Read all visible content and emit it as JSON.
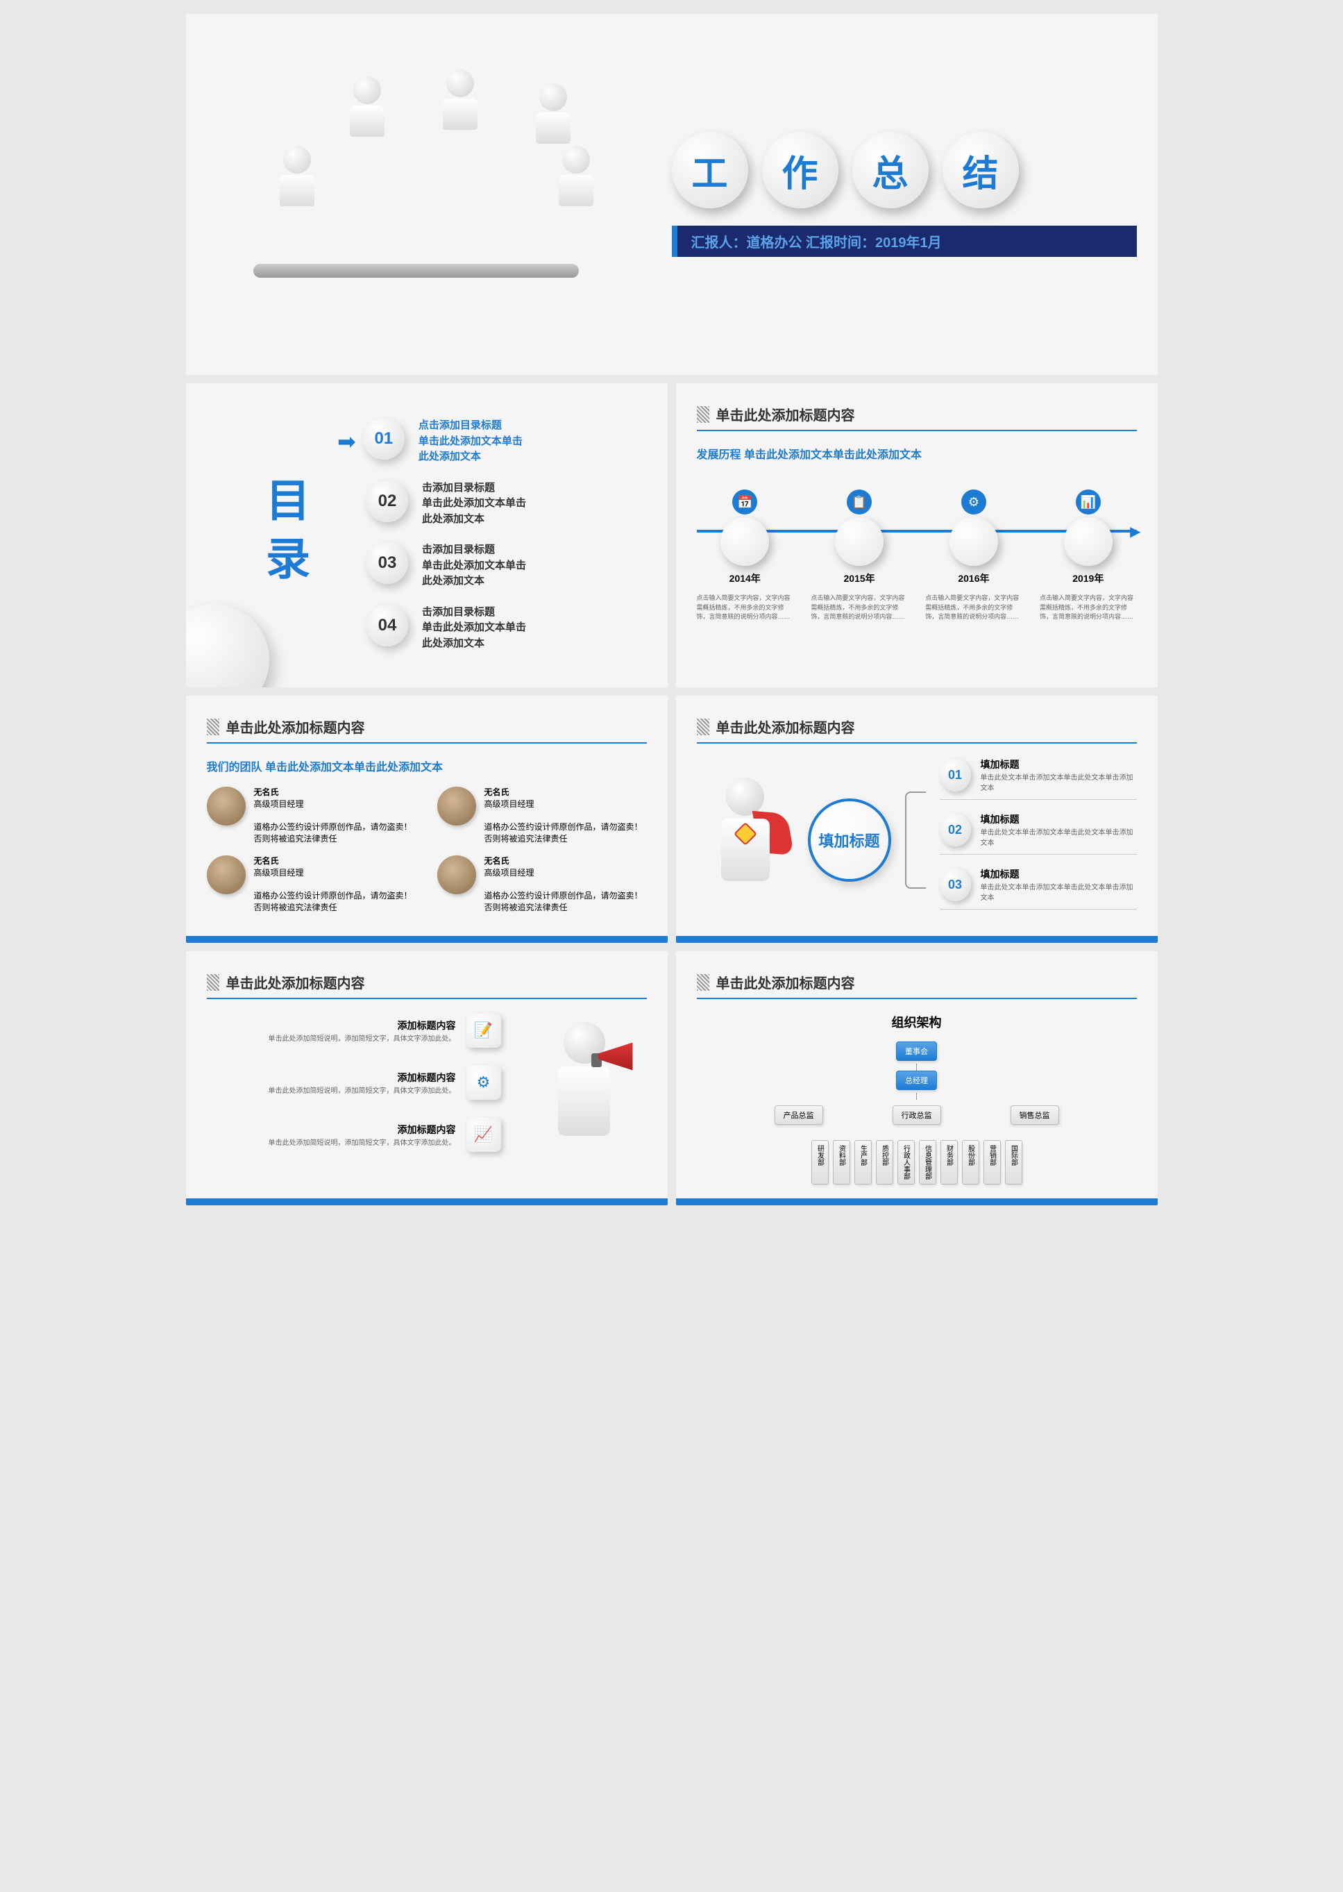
{
  "colors": {
    "primary": "#1e7bd4",
    "dark_bar": "#1a2a6c",
    "accent_red": "#d33"
  },
  "slide1": {
    "title_chars": [
      "工",
      "作",
      "总",
      "结"
    ],
    "subtitle": "汇报人：道格办公 汇报时间：2019年1月"
  },
  "slide2": {
    "heading": "目录",
    "items": [
      {
        "num": "01",
        "text": "点击添加目录标题\n单击此处添加文本单击\n此处添加文本",
        "active": true
      },
      {
        "num": "02",
        "text": "击添加目录标题\n单击此处添加文本单击\n此处添加文本",
        "active": false
      },
      {
        "num": "03",
        "text": "击添加目录标题\n单击此处添加文本单击\n此处添加文本",
        "active": false
      },
      {
        "num": "04",
        "text": "击添加目录标题\n单击此处添加文本单击\n此处添加文本",
        "active": false
      }
    ]
  },
  "slide3": {
    "header": "单击此处添加标题内容",
    "subtitle": "发展历程 单击此处添加文本单击此处添加文本",
    "timeline": [
      {
        "year": "2014年",
        "icon": "📅",
        "desc": "点击输入简要文字内容，文字内容需概括精炼，不用多余的文字修饰，言简意赅的说明分项内容……"
      },
      {
        "year": "2015年",
        "icon": "📋",
        "desc": "点击输入简要文字内容，文字内容需概括精炼，不用多余的文字修饰，言简意赅的说明分项内容……"
      },
      {
        "year": "2016年",
        "icon": "⚙",
        "desc": "点击输入简要文字内容，文字内容需概括精炼，不用多余的文字修饰，言简意赅的说明分项内容……"
      },
      {
        "year": "2019年",
        "icon": "📊",
        "desc": "点击输入简要文字内容，文字内容需概括精炼，不用多余的文字修饰，言简意赅的说明分项内容……"
      }
    ]
  },
  "slide4": {
    "header": "单击此处添加标题内容",
    "subtitle": "我们的团队 单击此处添加文本单击此处添加文本",
    "members": [
      {
        "name": "无名氏",
        "role": "高级项目经理",
        "desc": "道格办公签约设计师原创作品，请勿盗卖！否则将被追究法律责任"
      },
      {
        "name": "无名氏",
        "role": "高级项目经理",
        "desc": "道格办公签约设计师原创作品，请勿盗卖！否则将被追究法律责任"
      },
      {
        "name": "无名氏",
        "role": "高级项目经理",
        "desc": "道格办公签约设计师原创作品，请勿盗卖！否则将被追究法律责任"
      },
      {
        "name": "无名氏",
        "role": "高级项目经理",
        "desc": "道格办公签约设计师原创作品，请勿盗卖！否则将被追究法律责任"
      }
    ]
  },
  "slide5": {
    "header": "单击此处添加标题内容",
    "center_label": "填加标题",
    "items": [
      {
        "num": "01",
        "title": "填加标题",
        "sub": "单击此处文本单击添加文本单击此处文本单击添加文本"
      },
      {
        "num": "02",
        "title": "填加标题",
        "sub": "单击此处文本单击添加文本单击此处文本单击添加文本"
      },
      {
        "num": "03",
        "title": "填加标题",
        "sub": "单击此处文本单击添加文本单击此处文本单击添加文本"
      }
    ]
  },
  "slide6": {
    "header": "单击此处添加标题内容",
    "items": [
      {
        "title": "添加标题内容",
        "sub": "单击此处添加简短说明，添加简短文字，具体文字添加此处。",
        "icon": "📝"
      },
      {
        "title": "添加标题内容",
        "sub": "单击此处添加简短说明，添加简短文字，具体文字添加此处。",
        "icon": "⚙"
      },
      {
        "title": "添加标题内容",
        "sub": "单击此处添加简短说明，添加简短文字，具体文字添加此处。",
        "icon": "📈"
      }
    ]
  },
  "slide7": {
    "header": "单击此处添加标题内容",
    "org_title": "组织架构",
    "top": "董事会",
    "second": "总经理",
    "directors": [
      "产品总监",
      "行政总监",
      "销售总监"
    ],
    "departments": [
      "研发部",
      "资料部",
      "生产部",
      "质控部",
      "行政人事部",
      "信息管理部",
      "财务部",
      "股份部",
      "营销部",
      "国际部"
    ]
  }
}
